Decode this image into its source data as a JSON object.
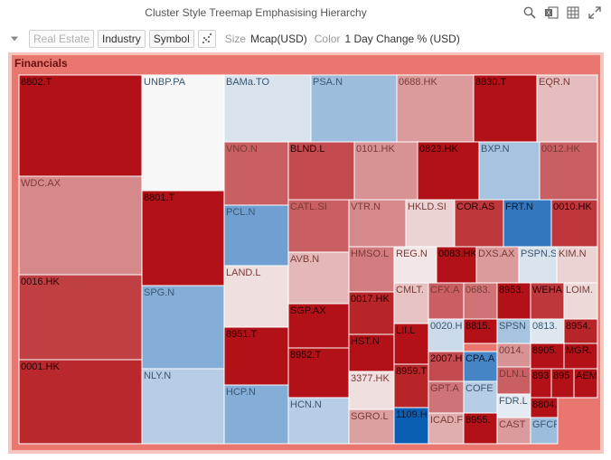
{
  "header": {
    "title": "Cluster Style Treemap Emphasising Hierarchy"
  },
  "icons": {
    "search": "search-icon",
    "export": "excel-export-icon",
    "table": "table-view-icon",
    "expand": "expand-icon"
  },
  "toolbar": {
    "collapse_icon": "caret-down-icon",
    "filter_value": "Real Estate",
    "level_1": "Industry",
    "level_2": "Symbol",
    "scatter_icon": "scatter-icon",
    "size_label": "Size",
    "size_value": "Mcap(USD)",
    "color_label": "Color",
    "color_value": "1 Day Change % (USD)"
  },
  "colors": {
    "negative": "#b01217",
    "positive": "#0a5fb4",
    "neutral": "#f7f7f7"
  },
  "chart_data": {
    "type": "treemap",
    "group": "Financials",
    "cells": [
      {
        "label": "8802.T",
        "c": -5
      },
      {
        "label": "UNBP.PA",
        "c": 0
      },
      {
        "label": "BAMa.TO",
        "c": 0.4
      },
      {
        "label": "PSA.N",
        "c": 1.5
      },
      {
        "label": "0688.HK",
        "c": -1.6
      },
      {
        "label": "8830.T",
        "c": -5
      },
      {
        "label": "EQR.N",
        "c": -0.9
      },
      {
        "label": "WDC.AX",
        "c": -2
      },
      {
        "label": "VNO.N",
        "c": -3
      },
      {
        "label": "BLND.L",
        "c": -3.5
      },
      {
        "label": "0101.HK",
        "c": -1.8
      },
      {
        "label": "0823.HK",
        "c": -5
      },
      {
        "label": "BXP.N",
        "c": 1.3
      },
      {
        "label": "0012.HK",
        "c": -3
      },
      {
        "label": "8801.T",
        "c": -5
      },
      {
        "label": "PCL.N",
        "c": 2.5
      },
      {
        "label": "CATL.SI",
        "c": -3
      },
      {
        "label": "VTR.N",
        "c": -2
      },
      {
        "label": "HKLD.SI",
        "c": -0.5
      },
      {
        "label": "COR.AS",
        "c": -4
      },
      {
        "label": "FRT.N",
        "c": 4
      },
      {
        "label": "0010.HK",
        "c": -4
      },
      {
        "label": "0016.HK",
        "c": -3.8
      },
      {
        "label": "AVB.N",
        "c": -1
      },
      {
        "label": "HMSO.L",
        "c": -2.3
      },
      {
        "label": "REG.N",
        "c": -0.2
      },
      {
        "label": "0083.HK",
        "c": -5
      },
      {
        "label": "DXS.AX",
        "c": -1.6
      },
      {
        "label": "PSPN.S",
        "c": 0.4
      },
      {
        "label": "KIM.N",
        "c": -0.5
      },
      {
        "label": "LAND.L",
        "c": -0.3
      },
      {
        "label": "SPG.N",
        "c": 2
      },
      {
        "label": "SGP.AX",
        "c": -5
      },
      {
        "label": "0017.HK",
        "c": -4.5
      },
      {
        "label": "CMLT.",
        "c": -0.8
      },
      {
        "label": "CFX.A",
        "c": -3
      },
      {
        "label": "0683.",
        "c": -2.5
      },
      {
        "label": "8953.",
        "c": -5
      },
      {
        "label": "WEHA",
        "c": -4
      },
      {
        "label": "LOIM.",
        "c": -0.4
      },
      {
        "label": "8951.T",
        "c": -5
      },
      {
        "label": "0020.H",
        "c": 0.6
      },
      {
        "label": "8815.",
        "c": -5
      },
      {
        "label": "SPSN",
        "c": 1.3
      },
      {
        "label": "0813.",
        "c": 0.3
      },
      {
        "label": "8954.",
        "c": -4.5
      },
      {
        "label": "0001.HK",
        "c": -4.4
      },
      {
        "label": "8952.T",
        "c": -5
      },
      {
        "label": "HST.N",
        "c": -5
      },
      {
        "label": "LII.L",
        "c": -5
      },
      {
        "label": "0014.",
        "c": -1.8
      },
      {
        "label": "8905.",
        "c": -5
      },
      {
        "label": "MGR.",
        "c": -5
      },
      {
        "label": "NLY.N",
        "c": 1
      },
      {
        "label": "2007.H",
        "c": -3.5
      },
      {
        "label": "CPA.A",
        "c": 3.5
      },
      {
        "label": "DLN.L",
        "c": -3
      },
      {
        "label": "893",
        "c": -5
      },
      {
        "label": "895",
        "c": -5
      },
      {
        "label": "AEM",
        "c": -5
      },
      {
        "label": "HCP.N",
        "c": 2
      },
      {
        "label": "3377.HK",
        "c": -0.3
      },
      {
        "label": "8959.T",
        "c": -4.5
      },
      {
        "label": "GPT.A",
        "c": -2.5
      },
      {
        "label": "COFE",
        "c": 1
      },
      {
        "label": "FDR.L",
        "c": 0.2
      },
      {
        "label": "HCN.N",
        "c": 1
      },
      {
        "label": "SGRO.L",
        "c": -1.5
      },
      {
        "label": "1109.H",
        "c": 5
      },
      {
        "label": "ICAD.F",
        "c": -1.2
      },
      {
        "label": "8955.",
        "c": -5
      },
      {
        "label": "CAST",
        "c": -1.6
      },
      {
        "label": "8804.",
        "c": -5
      },
      {
        "label": "GFCF",
        "c": 1.5
      }
    ]
  }
}
